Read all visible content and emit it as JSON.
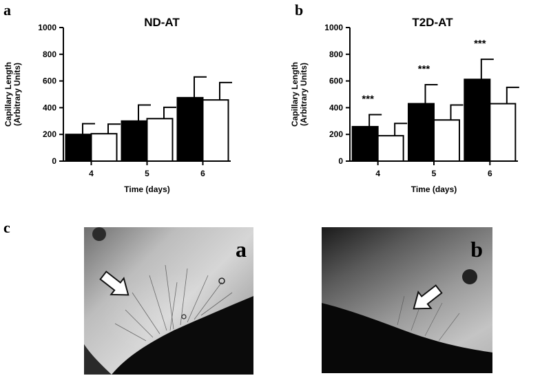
{
  "panel_labels": {
    "a": "a",
    "b": "b",
    "c": "c"
  },
  "chart_data": [
    {
      "type": "bar",
      "title": "ND-AT",
      "xlabel": "Time (days)",
      "ylabel_line1": "Capillary Length",
      "ylabel_line2": "(Arbitrary Units)",
      "ylim": [
        0,
        1000
      ],
      "yticks": [
        "0",
        "200",
        "400",
        "600",
        "800",
        "1000"
      ],
      "categories": [
        "4",
        "5",
        "6"
      ],
      "series": [
        {
          "values": [
            200,
            300,
            475
          ],
          "errors": [
            80,
            120,
            155
          ],
          "fill": "#000000"
        },
        {
          "values": [
            205,
            318,
            458
          ],
          "errors": [
            72,
            85,
            130
          ],
          "fill": "#ffffff"
        }
      ],
      "annotations": []
    },
    {
      "type": "bar",
      "title": "T2D-AT",
      "xlabel": "Time (days)",
      "ylabel_line1": "Capillary Length",
      "ylabel_line2": "(Arbitrary Units)",
      "ylim": [
        0,
        1000
      ],
      "yticks": [
        "0",
        "200",
        "400",
        "600",
        "800",
        "1000"
      ],
      "categories": [
        "4",
        "5",
        "6"
      ],
      "series": [
        {
          "values": [
            258,
            430,
            612
          ],
          "errors": [
            90,
            142,
            150
          ],
          "fill": "#000000"
        },
        {
          "values": [
            190,
            308,
            430
          ],
          "errors": [
            92,
            112,
            122
          ],
          "fill": "#ffffff"
        }
      ],
      "annotations": [
        "***",
        "***",
        "***"
      ]
    }
  ],
  "photos": {
    "left_label": "a",
    "right_label": "b"
  }
}
